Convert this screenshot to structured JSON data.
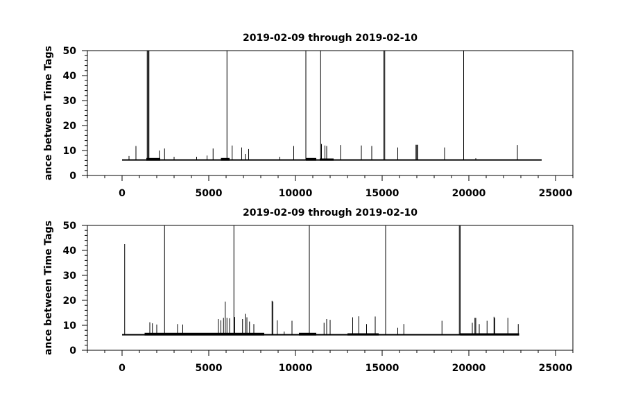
{
  "figure": {
    "background": "#ffffff",
    "axis_color": "#000000",
    "line_color": "#000000"
  },
  "chart_data": [
    {
      "type": "line",
      "title": "2019-02-09 through 2019-02-10",
      "xlabel": "",
      "ylabel": "ance between Time Tags",
      "xlim": [
        -2000,
        26000
      ],
      "ylim": [
        0,
        50
      ],
      "xticks": [
        0,
        5000,
        10000,
        15000,
        20000,
        25000
      ],
      "xtick_labels": [
        "0",
        "5000",
        "10000",
        "15000",
        "20000",
        "25000"
      ],
      "yticks": [
        0,
        10,
        20,
        30,
        40,
        50
      ],
      "ytick_labels": [
        "0",
        "10",
        "20",
        "30",
        "40",
        "50"
      ],
      "grid": false,
      "series": [
        {
          "x_range": [
            0,
            24200
          ],
          "baseline": 6.2,
          "elevated_segments": [
            [
              1400,
              2200,
              7.0
            ],
            [
              5700,
              6200,
              7.0
            ],
            [
              10600,
              11200,
              7.0
            ],
            [
              11400,
              12200,
              6.8
            ]
          ],
          "spikes": [
            [
              400,
              7.8
            ],
            [
              800,
              11.8
            ],
            [
              1450,
              50
            ],
            [
              1500,
              50
            ],
            [
              1550,
              50
            ],
            [
              2150,
              10
            ],
            [
              2450,
              10.8
            ],
            [
              3000,
              7.5
            ],
            [
              4300,
              7.5
            ],
            [
              4900,
              8
            ],
            [
              5250,
              10.8
            ],
            [
              6050,
              50
            ],
            [
              6350,
              12
            ],
            [
              6900,
              11.2
            ],
            [
              7100,
              8.6
            ],
            [
              7300,
              10.6
            ],
            [
              9100,
              7.5
            ],
            [
              9900,
              11.8
            ],
            [
              10600,
              50
            ],
            [
              11450,
              50
            ],
            [
              11500,
              12.6
            ],
            [
              11700,
              12
            ],
            [
              11800,
              11.8
            ],
            [
              12600,
              12.2
            ],
            [
              13800,
              12
            ],
            [
              14400,
              11.8
            ],
            [
              15100,
              50
            ],
            [
              15150,
              50
            ],
            [
              15900,
              11.2
            ],
            [
              16950,
              12.3
            ],
            [
              17000,
              12.3
            ],
            [
              17050,
              12.3
            ],
            [
              18600,
              11.2
            ],
            [
              19700,
              50
            ],
            [
              20400,
              6.9
            ],
            [
              22800,
              12.2
            ]
          ]
        }
      ]
    },
    {
      "type": "line",
      "title": "2019-02-09 through 2019-02-10",
      "xlabel": "",
      "ylabel": "ance between Time Tags",
      "xlim": [
        -2000,
        26000
      ],
      "ylim": [
        0,
        50
      ],
      "xticks": [
        0,
        5000,
        10000,
        15000,
        20000,
        25000
      ],
      "xtick_labels": [
        "0",
        "5000",
        "10000",
        "15000",
        "20000",
        "25000"
      ],
      "yticks": [
        0,
        10,
        20,
        30,
        40,
        50
      ],
      "ytick_labels": [
        "0",
        "10",
        "20",
        "30",
        "40",
        "50"
      ],
      "grid": false,
      "series": [
        {
          "x_range": [
            0,
            22900
          ],
          "baseline": 6.2,
          "elevated_segments": [
            [
              1300,
              8200,
              7.0
            ],
            [
              10200,
              11200,
              7.0
            ],
            [
              13000,
              14800,
              6.8
            ],
            [
              19500,
              22900,
              6.8
            ]
          ],
          "spikes": [
            [
              150,
              42.5
            ],
            [
              1600,
              11.2
            ],
            [
              1750,
              10.8
            ],
            [
              2000,
              10.3
            ],
            [
              2450,
              50
            ],
            [
              3200,
              10.5
            ],
            [
              3500,
              10.3
            ],
            [
              5550,
              12.5
            ],
            [
              5700,
              12
            ],
            [
              5850,
              13
            ],
            [
              5950,
              19.5
            ],
            [
              6050,
              13
            ],
            [
              6200,
              12.8
            ],
            [
              6450,
              50
            ],
            [
              6500,
              13.3
            ],
            [
              6950,
              12.5
            ],
            [
              7100,
              14.6
            ],
            [
              7200,
              13.2
            ],
            [
              7350,
              11.5
            ],
            [
              7600,
              10.5
            ],
            [
              8650,
              19.8
            ],
            [
              8700,
              19.5
            ],
            [
              8950,
              12
            ],
            [
              9350,
              7.5
            ],
            [
              9800,
              11.8
            ],
            [
              10800,
              50
            ],
            [
              11650,
              11
            ],
            [
              11800,
              12.5
            ],
            [
              12000,
              12.2
            ],
            [
              13300,
              13.2
            ],
            [
              13650,
              13.6
            ],
            [
              14100,
              10.5
            ],
            [
              14600,
              13.5
            ],
            [
              15200,
              50
            ],
            [
              15900,
              9
            ],
            [
              16250,
              10.5
            ],
            [
              18450,
              11.8
            ],
            [
              19450,
              50
            ],
            [
              19500,
              50
            ],
            [
              20200,
              11
            ],
            [
              20350,
              13
            ],
            [
              20400,
              13
            ],
            [
              20600,
              10.5
            ],
            [
              21050,
              11.8
            ],
            [
              21450,
              13.4
            ],
            [
              21500,
              13
            ],
            [
              22250,
              13
            ],
            [
              22850,
              10.5
            ]
          ]
        }
      ]
    }
  ]
}
